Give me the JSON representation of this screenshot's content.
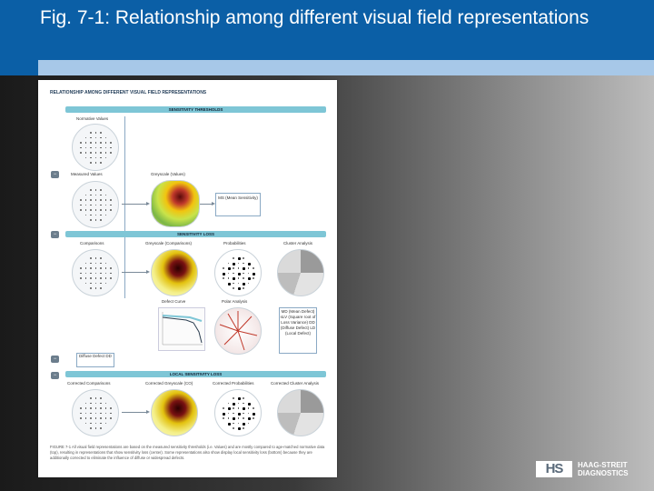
{
  "slide": {
    "title": "Fig. 7-1: Relationship among different visual field representations"
  },
  "figure": {
    "heading": "RELATIONSHIP AMONG DIFFERENT VISUAL FIELD REPRESENTATIONS",
    "bands": {
      "sensitivity_thresholds": "SENSITIVITY THRESHOLDS",
      "sensitivity_loss": "SENSITIVITY LOSS",
      "local_sensitivity_loss": "LOCAL SENSITIVITY LOSS"
    },
    "labels": {
      "normative_values": "Normative Values",
      "measured_values": "Measured Values",
      "greyscale_values": "Greyscale (Values)",
      "ms_box": "MS (Mean Sensitivity)",
      "comparisons": "Comparisons",
      "greyscale_comparisons": "Greyscale (Comparisons)",
      "probabilities": "Probabilities",
      "cluster_analysis": "Cluster Analysis",
      "defect_curve": "Defect Curve",
      "polar_analysis": "Polar Analysis",
      "md_box": "MD (Mean Defect) sLV (Square root of Loss Variance) DD (Diffuse Defect) LD (Local Defect)",
      "diffuse_defect": "Diffuse Defect DD",
      "corrected_comparisons": "Corrected Comparisons",
      "corrected_greyscale": "Corrected Greyscale (CO)",
      "corrected_probabilities": "Corrected Probabilities",
      "corrected_cluster": "Corrected Cluster Analysis"
    },
    "caption": "FIGURE 7-1 All visual field representations are based on the measured sensitivity thresholds (i.e. Values) and are mostly compared to age-matched normative data (top), resulting in representations that show sensitivity loss (center). Some representations also show display local sensitivity loss (bottom) because they are additionally corrected to eliminate the influence of diffuse or widespread defects."
  },
  "logo": {
    "mark": "HS",
    "line1": "HAAG-STREIT",
    "line2": "DIAGNOSTICS"
  }
}
